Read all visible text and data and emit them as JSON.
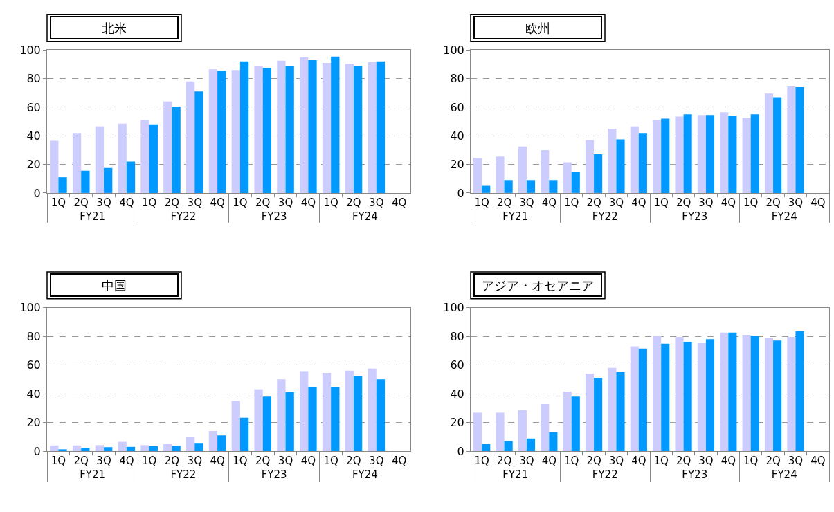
{
  "chart_data": [
    {
      "type": "bar",
      "title": "北米",
      "categories": [
        "1Q",
        "2Q",
        "3Q",
        "4Q",
        "1Q",
        "2Q",
        "3Q",
        "4Q",
        "1Q",
        "2Q",
        "3Q",
        "4Q",
        "1Q",
        "2Q",
        "3Q",
        "4Q"
      ],
      "annotations": [
        "FY21",
        "FY22",
        "FY23",
        "FY24"
      ],
      "ylim": [
        0,
        100
      ],
      "yticks": [
        0,
        20,
        40,
        60,
        80,
        100
      ],
      "grid": "y",
      "series": [
        {
          "color": "#ccccff",
          "values": [
            36.5,
            42,
            46.5,
            48.5,
            51,
            64,
            78,
            86.5,
            86,
            88.5,
            92.5,
            95,
            91,
            90.5,
            91.5,
            null
          ]
        },
        {
          "color": "#0099ff",
          "values": [
            11,
            15.5,
            17.5,
            22,
            48,
            60.5,
            71,
            85.5,
            92,
            87.5,
            88.5,
            93,
            95.5,
            89,
            92,
            null
          ]
        }
      ]
    },
    {
      "type": "bar",
      "title": "欧州",
      "categories": [
        "1Q",
        "2Q",
        "3Q",
        "4Q",
        "1Q",
        "2Q",
        "3Q",
        "4Q",
        "1Q",
        "2Q",
        "3Q",
        "4Q",
        "1Q",
        "2Q",
        "3Q",
        "4Q"
      ],
      "annotations": [
        "FY21",
        "FY22",
        "FY23",
        "FY24"
      ],
      "ylim": [
        0,
        100
      ],
      "yticks": [
        0,
        20,
        40,
        60,
        80,
        100
      ],
      "grid": "y",
      "series": [
        {
          "color": "#ccccff",
          "values": [
            24.5,
            25.5,
            32.5,
            30,
            21.5,
            37,
            45,
            46.5,
            51,
            53.5,
            54.5,
            56.5,
            52.5,
            69.5,
            74.5,
            null
          ]
        },
        {
          "color": "#0099ff",
          "values": [
            5,
            9,
            9,
            9,
            15,
            27,
            37.5,
            42,
            52,
            55,
            54.5,
            54,
            55,
            67,
            74,
            null
          ]
        }
      ]
    },
    {
      "type": "bar",
      "title": "中国",
      "categories": [
        "1Q",
        "2Q",
        "3Q",
        "4Q",
        "1Q",
        "2Q",
        "3Q",
        "4Q",
        "1Q",
        "2Q",
        "3Q",
        "4Q",
        "1Q",
        "2Q",
        "3Q",
        "4Q"
      ],
      "annotations": [
        "FY21",
        "FY22",
        "FY23",
        "FY24"
      ],
      "ylim": [
        0,
        100
      ],
      "yticks": [
        0,
        20,
        40,
        60,
        80,
        100
      ],
      "grid": "y",
      "series": [
        {
          "color": "#ccccff",
          "values": [
            4,
            4,
            4.2,
            6.5,
            4.2,
            5,
            9.7,
            14,
            35,
            43,
            50,
            55.7,
            54.5,
            56,
            57.5,
            null
          ]
        },
        {
          "color": "#0099ff",
          "values": [
            1.3,
            2.3,
            2.8,
            3,
            3.5,
            3.8,
            5.7,
            11,
            23.3,
            38,
            41,
            44.5,
            44.7,
            52.3,
            50,
            null
          ]
        }
      ]
    },
    {
      "type": "bar",
      "title": "アジア・オセアニア",
      "categories": [
        "1Q",
        "2Q",
        "3Q",
        "4Q",
        "1Q",
        "2Q",
        "3Q",
        "4Q",
        "1Q",
        "2Q",
        "3Q",
        "4Q",
        "1Q",
        "2Q",
        "3Q",
        "4Q"
      ],
      "annotations": [
        "FY21",
        "FY22",
        "FY23",
        "FY24"
      ],
      "ylim": [
        0,
        100
      ],
      "yticks": [
        0,
        20,
        40,
        60,
        80,
        100
      ],
      "grid": "y",
      "series": [
        {
          "color": "#ccccff",
          "values": [
            26.8,
            26.8,
            28.5,
            32.8,
            41.5,
            54,
            58,
            73,
            80,
            79.5,
            75.2,
            82.5,
            81,
            79,
            79.5,
            null
          ]
        },
        {
          "color": "#0099ff",
          "values": [
            5,
            7,
            8.8,
            13.3,
            38,
            51,
            55,
            71.5,
            74.8,
            76,
            78,
            82.5,
            80.5,
            77,
            83.5,
            null
          ]
        }
      ]
    }
  ]
}
